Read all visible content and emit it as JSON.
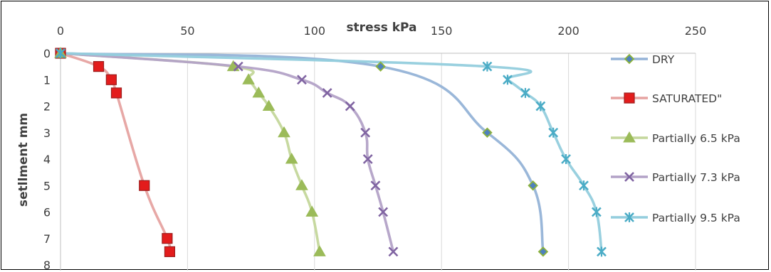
{
  "chart_data": {
    "type": "line",
    "xlabel": "stress kPa",
    "ylabel": "setllment mm",
    "xlim": [
      0,
      250
    ],
    "ylim": [
      0,
      8
    ],
    "x_ticks": [
      "0",
      "50",
      "100",
      "150",
      "200",
      "250"
    ],
    "y_ticks": [
      "0",
      "1",
      "2",
      "3",
      "4",
      "5",
      "6",
      "7",
      "8"
    ],
    "x_axis_position": "top",
    "y_axis_inverted": true,
    "grid": "vertical",
    "legend_position": "right",
    "series": [
      {
        "name": "DRY",
        "color": "#95b3d7",
        "marker_fill": "#4f81bd",
        "marker_stroke": "#8db33a",
        "marker": "diamond",
        "points": [
          [
            0,
            0
          ],
          [
            126,
            0.5
          ],
          [
            168,
            3
          ],
          [
            186,
            5
          ],
          [
            190,
            7.5
          ]
        ]
      },
      {
        "name": "SATURATED\"",
        "color": "#e6a3a1",
        "marker_fill": "#e31c1c",
        "marker_stroke": "#9c1d1d",
        "marker": "square",
        "points": [
          [
            0,
            0
          ],
          [
            15,
            0.5
          ],
          [
            20,
            1
          ],
          [
            22,
            1.5
          ],
          [
            33,
            5
          ],
          [
            42,
            7
          ],
          [
            43,
            7.5
          ]
        ]
      },
      {
        "name": "Partially 6.5 kPa",
        "color": "#c4d79b",
        "marker_fill": "#9bbb59",
        "marker_stroke": "#9bbb59",
        "marker": "triangle",
        "points": [
          [
            0,
            0
          ],
          [
            68,
            0.5
          ],
          [
            74,
            1
          ],
          [
            78,
            1.5
          ],
          [
            82,
            2
          ],
          [
            88,
            3
          ],
          [
            91,
            4
          ],
          [
            95,
            5
          ],
          [
            99,
            6
          ],
          [
            102,
            7.5
          ]
        ]
      },
      {
        "name": "Partially 7.3 kPa",
        "color": "#b3a2c7",
        "marker_fill": "#8064a2",
        "marker_stroke": "#8064a2",
        "marker": "x",
        "points": [
          [
            0,
            0
          ],
          [
            70,
            0.5
          ],
          [
            95,
            1
          ],
          [
            105,
            1.5
          ],
          [
            114,
            2
          ],
          [
            120,
            3
          ],
          [
            121,
            4
          ],
          [
            124,
            5
          ],
          [
            127,
            6
          ],
          [
            131,
            7.5
          ]
        ]
      },
      {
        "name": "Partially 9.5 kPa",
        "color": "#93cddd",
        "marker_fill": "#4bacc6",
        "marker_stroke": "#4bacc6",
        "marker": "star",
        "points": [
          [
            0,
            0
          ],
          [
            168,
            0.5
          ],
          [
            176,
            1
          ],
          [
            183,
            1.5
          ],
          [
            189,
            2
          ],
          [
            194,
            3
          ],
          [
            199,
            4
          ],
          [
            206,
            5
          ],
          [
            211,
            6
          ],
          [
            213,
            7.5
          ]
        ]
      }
    ]
  }
}
